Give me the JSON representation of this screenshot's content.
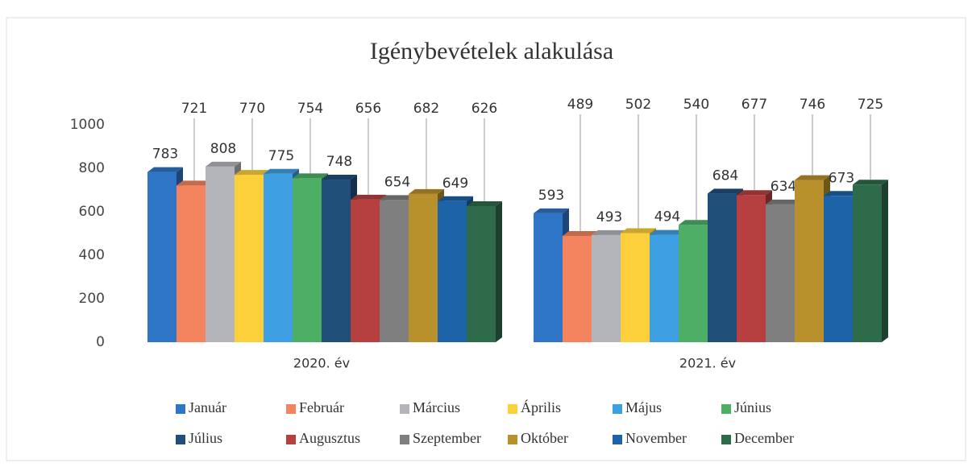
{
  "chart_data": {
    "type": "bar",
    "title": "Igénybevételek alakulása",
    "categories": [
      "2020. év",
      "2021. év"
    ],
    "series": [
      {
        "name": "Január",
        "color": "#2e75c6",
        "values": [
          783,
          593
        ]
      },
      {
        "name": "Február",
        "color": "#f4845f",
        "values": [
          721,
          489
        ]
      },
      {
        "name": "Március",
        "color": "#b3b5ba",
        "values": [
          808,
          493
        ]
      },
      {
        "name": "Április",
        "color": "#fcd03a",
        "values": [
          770,
          502
        ]
      },
      {
        "name": "Május",
        "color": "#3ea0e2",
        "values": [
          775,
          494
        ]
      },
      {
        "name": "Június",
        "color": "#4caf65",
        "values": [
          754,
          540
        ]
      },
      {
        "name": "Július",
        "color": "#1f4e79",
        "values": [
          748,
          684
        ]
      },
      {
        "name": "Augusztus",
        "color": "#b5403f",
        "values": [
          656,
          677
        ]
      },
      {
        "name": "Szeptember",
        "color": "#7f7f7f",
        "values": [
          654,
          634
        ]
      },
      {
        "name": "Október",
        "color": "#b8902c",
        "values": [
          682,
          746
        ]
      },
      {
        "name": "November",
        "color": "#1c63a8",
        "values": [
          649,
          673
        ]
      },
      {
        "name": "December",
        "color": "#2e6b4b",
        "values": [
          626,
          725
        ]
      }
    ],
    "ylim": [
      0,
      1000
    ],
    "yticks": [
      0,
      200,
      400,
      600,
      800,
      1000
    ],
    "grid": false,
    "legend": "bottom"
  }
}
